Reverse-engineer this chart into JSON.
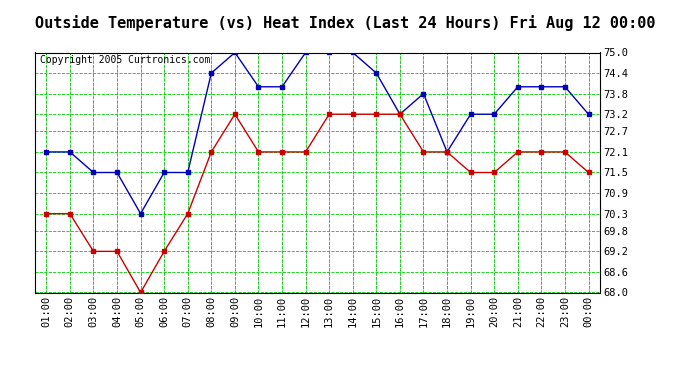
{
  "title": "Outside Temperature (vs) Heat Index (Last 24 Hours) Fri Aug 12 00:00",
  "copyright": "Copyright 2005 Curtronics.com",
  "x_labels": [
    "01:00",
    "02:00",
    "03:00",
    "04:00",
    "05:00",
    "06:00",
    "07:00",
    "08:00",
    "09:00",
    "10:00",
    "11:00",
    "12:00",
    "13:00",
    "14:00",
    "15:00",
    "16:00",
    "17:00",
    "18:00",
    "19:00",
    "20:00",
    "21:00",
    "22:00",
    "23:00",
    "00:00"
  ],
  "blue_data": [
    72.1,
    72.1,
    71.5,
    71.5,
    70.3,
    71.5,
    71.5,
    74.4,
    75.0,
    74.0,
    74.0,
    75.0,
    75.0,
    75.0,
    74.4,
    73.2,
    73.8,
    72.1,
    73.2,
    73.2,
    74.0,
    74.0,
    74.0,
    73.2
  ],
  "red_data": [
    70.3,
    70.3,
    69.2,
    69.2,
    68.0,
    69.2,
    70.3,
    72.1,
    73.2,
    72.1,
    72.1,
    72.1,
    73.2,
    73.2,
    73.2,
    73.2,
    72.1,
    72.1,
    71.5,
    71.5,
    72.1,
    72.1,
    72.1,
    71.5
  ],
  "ylim_min": 68.0,
  "ylim_max": 75.0,
  "yticks": [
    68.0,
    68.6,
    69.2,
    69.8,
    70.3,
    70.9,
    71.5,
    72.1,
    72.7,
    73.2,
    73.8,
    74.4,
    75.0
  ],
  "blue_color": "#0000bb",
  "red_color": "#cc0000",
  "grid_major_color": "#00cc00",
  "grid_minor_color": "#888888",
  "bg_color": "#ffffff",
  "title_fontsize": 11,
  "copyright_fontsize": 7,
  "tick_fontsize": 7.5
}
